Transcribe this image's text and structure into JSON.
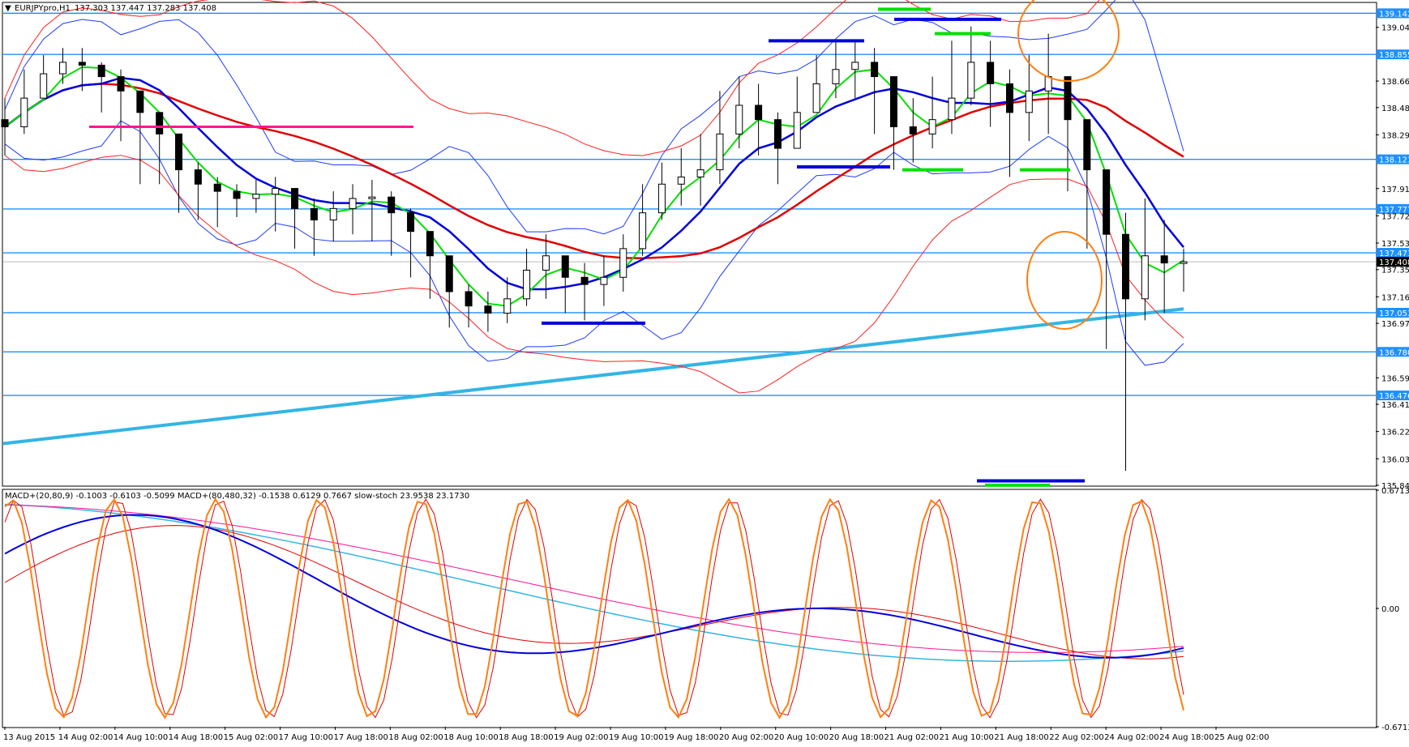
{
  "header": {
    "symbol_label": "EURJPYpro,H1",
    "ohlc": "137.303 137.447 137.283 137.408"
  },
  "indicator_header": {
    "text": "MACD+(20,80,9) -0.1003 -0.6103 -0.5099  MACD+(80,480,32) -0.1538 0.6129 0.7667  slow-stoch 23.9538 23.1730"
  },
  "chart_data": [
    {
      "type": "candlestick",
      "symbol": "EURJPYpro",
      "timeframe": "H1",
      "ylim": [
        135.849,
        139.212
      ],
      "y_ticks": [
        139.044,
        138.669,
        138.484,
        138.294,
        137.919,
        137.729,
        137.539,
        137.354,
        137.164,
        136.979,
        136.599,
        136.414,
        136.224,
        136.034,
        135.849
      ],
      "level_labels": [
        139.142,
        138.855,
        138.123,
        137.777,
        137.471,
        137.053,
        136.78,
        136.476
      ],
      "current_price": 137.408,
      "x_tick_labels": [
        "13 Aug 2015",
        "14 Aug 02:00",
        "14 Aug 10:00",
        "14 Aug 18:00",
        "15 Aug 02:00",
        "17 Aug 10:00",
        "17 Aug 18:00",
        "18 Aug 02:00",
        "18 Aug 10:00",
        "18 Aug 18:00",
        "19 Aug 02:00",
        "19 Aug 10:00",
        "19 Aug 18:00",
        "20 Aug 02:00",
        "20 Aug 10:00",
        "20 Aug 18:00",
        "21 Aug 02:00",
        "21 Aug 10:00",
        "21 Aug 18:00",
        "22 Aug 02:00",
        "24 Aug 02:00",
        "24 Aug 18:00",
        "25 Aug 02:00"
      ],
      "close_path": [
        138.35,
        138.55,
        138.72,
        138.8,
        138.78,
        138.7,
        138.6,
        138.45,
        138.3,
        138.05,
        137.95,
        137.9,
        137.85,
        137.88,
        137.92,
        137.78,
        137.7,
        137.78,
        137.85,
        137.86,
        137.75,
        137.62,
        137.45,
        137.2,
        137.1,
        137.05,
        137.15,
        137.35,
        137.45,
        137.3,
        137.25,
        137.3,
        137.5,
        137.75,
        137.95,
        138.0,
        138.05,
        138.3,
        138.5,
        138.4,
        138.2,
        138.45,
        138.65,
        138.75,
        138.8,
        138.7,
        138.35,
        138.3,
        138.4,
        138.55,
        138.8,
        138.65,
        138.45,
        138.6,
        138.7,
        138.4,
        138.05,
        137.6,
        137.15,
        137.45,
        137.4,
        137.408
      ],
      "lows_path": [
        138.15,
        138.3,
        138.55,
        138.65,
        138.6,
        138.45,
        138.25,
        137.95,
        137.95,
        137.75,
        137.7,
        137.65,
        137.72,
        137.75,
        137.62,
        137.5,
        137.45,
        137.55,
        137.6,
        137.55,
        137.45,
        137.3,
        137.15,
        136.95,
        136.95,
        136.92,
        136.98,
        137.1,
        137.15,
        137.05,
        137.0,
        137.1,
        137.2,
        137.45,
        137.7,
        137.8,
        137.8,
        137.95,
        138.2,
        138.15,
        137.95,
        138.2,
        138.45,
        138.55,
        138.55,
        138.3,
        138.05,
        138.1,
        138.2,
        138.3,
        138.5,
        138.35,
        138.0,
        138.25,
        138.3,
        137.9,
        137.5,
        136.8,
        135.95,
        137.0,
        137.05,
        137.2
      ],
      "highs_path": [
        138.55,
        138.75,
        138.85,
        138.9,
        138.9,
        138.8,
        138.75,
        138.6,
        138.45,
        138.25,
        138.1,
        138.0,
        137.95,
        137.98,
        138.0,
        137.9,
        137.85,
        137.9,
        137.95,
        137.98,
        137.9,
        137.78,
        137.6,
        137.4,
        137.25,
        137.2,
        137.3,
        137.5,
        137.6,
        137.45,
        137.4,
        137.45,
        137.6,
        137.95,
        138.1,
        138.2,
        138.3,
        138.6,
        138.7,
        138.65,
        138.45,
        138.7,
        138.85,
        138.95,
        138.95,
        138.9,
        138.6,
        138.55,
        138.7,
        138.95,
        139.05,
        138.95,
        138.75,
        138.85,
        139.0,
        138.6,
        138.25,
        137.95,
        137.75,
        137.85,
        137.7,
        137.5
      ]
    },
    {
      "type": "line",
      "subwindow": "MACD+(20,80,9) / MACD+(80,480,32) / slow-stoch",
      "ylim": [
        -0.6713,
        0.6713
      ],
      "y_ticks": [
        0.6713,
        0.0,
        -0.6713
      ],
      "y_tick_labels": [
        "0.6713",
        "0.00",
        "-0.6713"
      ]
    }
  ],
  "colors": {
    "level_line": "#1e90ff",
    "trend_line": "#33b5e5",
    "ma_green": "#00e000",
    "ma_blue": "#0000dd",
    "ma_red": "#e00000",
    "bollinger_blue": "#1e3cff",
    "bollinger_red": "#ff2020",
    "magenta": "#ff1493",
    "orange": "#ff7f0e",
    "price_label_bg": "#1e90ff",
    "current_label_bg": "#000000"
  }
}
